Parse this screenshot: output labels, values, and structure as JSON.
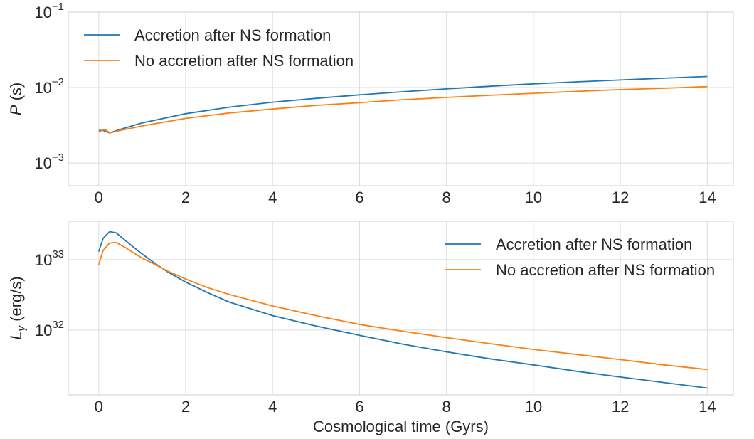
{
  "chart_data": [
    {
      "type": "line",
      "title": "",
      "xlabel": "",
      "ylabel_italic": "P",
      "ylabel_unit": " (s)",
      "yscale": "log",
      "xlim": [
        -0.7,
        14.6
      ],
      "ylim": [
        0.0005,
        0.1
      ],
      "grid": true,
      "legend_position": "top-left",
      "x_ticks": [
        0,
        2,
        4,
        6,
        8,
        10,
        12,
        14
      ],
      "y_ticks": [
        {
          "value": 0.001,
          "base": "10",
          "exp": "−3"
        },
        {
          "value": 0.01,
          "base": "10",
          "exp": "−2"
        },
        {
          "value": 0.1,
          "base": "10",
          "exp": "−1"
        }
      ],
      "series": [
        {
          "name": "Accretion after NS formation",
          "color": "#1f77b4",
          "x": [
            0,
            0.1,
            0.25,
            0.5,
            1,
            2,
            3,
            4,
            5,
            6,
            7,
            8,
            9,
            10,
            11,
            12,
            13,
            14
          ],
          "y": [
            0.0027,
            0.0027,
            0.0025,
            0.0028,
            0.0034,
            0.0045,
            0.0055,
            0.0064,
            0.0072,
            0.008,
            0.0088,
            0.0096,
            0.0104,
            0.0112,
            0.0119,
            0.0126,
            0.0133,
            0.014
          ]
        },
        {
          "name": "No accretion after NS formation",
          "color": "#ff7f0e",
          "x": [
            0,
            0.15,
            0.25,
            0.5,
            1,
            2,
            3,
            4,
            5,
            6,
            7,
            8,
            9,
            10,
            11,
            12,
            13,
            14
          ],
          "y": [
            0.0026,
            0.0028,
            0.0025,
            0.0027,
            0.0031,
            0.0039,
            0.0046,
            0.0052,
            0.0058,
            0.0063,
            0.0069,
            0.0074,
            0.0079,
            0.0084,
            0.0089,
            0.0094,
            0.0098,
            0.0103
          ]
        }
      ]
    },
    {
      "type": "line",
      "title": "",
      "xlabel": "Cosmological time (Gyrs)",
      "ylabel_italic": "L",
      "ylabel_sub": "γ",
      "ylabel_unit": " (erg/s)",
      "yscale": "log",
      "xlim": [
        -0.7,
        14.6
      ],
      "ylim": [
        1.2e+31,
        3.5e+33
      ],
      "grid": true,
      "legend_position": "top-right",
      "x_ticks": [
        0,
        2,
        4,
        6,
        8,
        10,
        12,
        14
      ],
      "y_ticks": [
        {
          "value": 1e+32,
          "base": "10",
          "exp": "32"
        },
        {
          "value": 1e+33,
          "base": "10",
          "exp": "33"
        }
      ],
      "series": [
        {
          "name": "Accretion after NS formation",
          "color": "#1f77b4",
          "x": [
            0,
            0.1,
            0.25,
            0.4,
            0.6,
            0.8,
            1,
            1.3,
            1.6,
            2,
            2.5,
            3,
            4,
            5,
            6,
            7,
            8,
            9,
            10,
            11,
            12,
            13,
            14
          ],
          "y": [
            1.3e+33,
            2e+33,
            2.5e+33,
            2.4e+33,
            1.9e+33,
            1.5e+33,
            1.2e+33,
            8.8e+32,
            6.6e+32,
            4.8e+32,
            3.4e+32,
            2.5e+32,
            1.6e+32,
            1.14e+32,
            8.4e+31,
            6.3e+31,
            4.9e+31,
            3.9e+31,
            3.2e+31,
            2.6e+31,
            2.15e+31,
            1.8e+31,
            1.5e+31
          ]
        },
        {
          "name": "No accretion after NS formation",
          "color": "#ff7f0e",
          "x": [
            0,
            0.1,
            0.25,
            0.4,
            0.6,
            0.8,
            1,
            1.3,
            1.6,
            2,
            2.5,
            3,
            4,
            5,
            6,
            7,
            8,
            9,
            10,
            11,
            12,
            13,
            14
          ],
          "y": [
            8.5e+32,
            1.35e+33,
            1.72e+33,
            1.75e+33,
            1.5e+33,
            1.25e+33,
            1.05e+33,
            8.5e+32,
            6.8e+32,
            5.3e+32,
            4e+32,
            3.2e+32,
            2.2e+32,
            1.6e+32,
            1.2e+32,
            9.6e+31,
            7.8e+31,
            6.4e+31,
            5.3e+31,
            4.5e+31,
            3.8e+31,
            3.2e+31,
            2.75e+31
          ]
        }
      ]
    }
  ]
}
